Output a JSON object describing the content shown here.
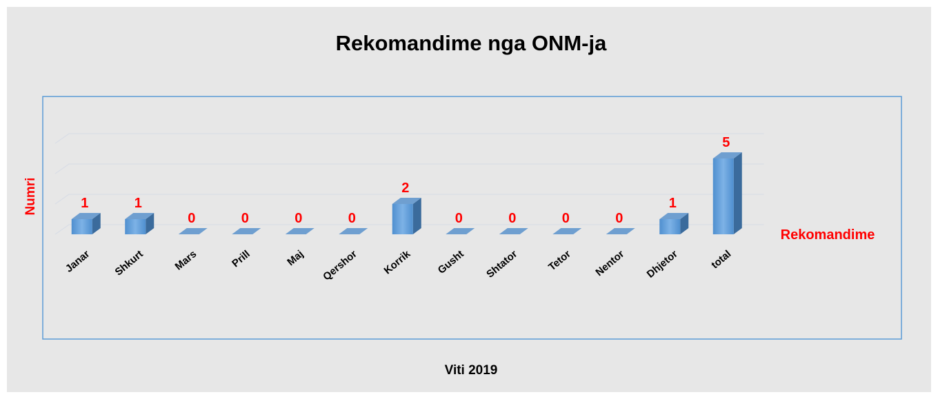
{
  "chart_data": {
    "type": "bar",
    "title": "Rekomandime nga ONM-ja",
    "x_label": "Viti 2019",
    "y_label": "Numri",
    "categories": [
      "Janar",
      "Shkurt",
      "Mars",
      "Prill",
      "Maj",
      "Qershor",
      "Korrik",
      "Gusht",
      "Shtator",
      "Tetor",
      "Nentor",
      "Dhjetor",
      "total"
    ],
    "series": [
      {
        "name": "Rekomandime",
        "color": "#5b9bd5",
        "values": [
          1,
          1,
          0,
          0,
          0,
          0,
          2,
          0,
          0,
          0,
          0,
          1,
          5
        ]
      }
    ],
    "ylim": [
      0,
      6
    ],
    "yticks": [
      0,
      2,
      4,
      6
    ],
    "grid": true,
    "legend": "right"
  }
}
